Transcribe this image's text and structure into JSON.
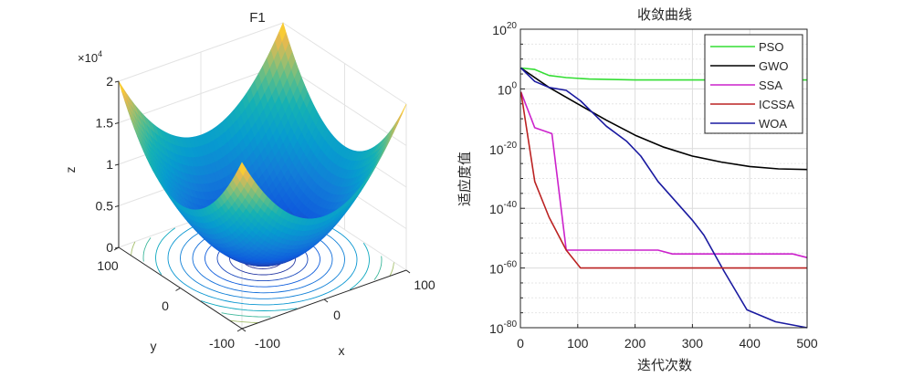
{
  "chart_data": [
    {
      "type": "surface",
      "title": "F1",
      "xlabel": "x",
      "ylabel": "y",
      "zlabel": "z",
      "z_exponent_label": "×10",
      "z_exponent_power": "4",
      "function": "x^2 + y^2",
      "x_range": [
        -100,
        100
      ],
      "y_range": [
        -100,
        100
      ],
      "zlim": [
        0,
        20000
      ],
      "x_ticks": [
        "-100",
        "0",
        "100"
      ],
      "y_ticks": [
        "-100",
        "0",
        "100"
      ],
      "z_ticks": [
        "0",
        "0.5",
        "1",
        "1.5",
        "2"
      ],
      "colormap": "parula",
      "contour_on_floor": true
    },
    {
      "type": "line",
      "title": "收敛曲线",
      "xlabel": "迭代次数",
      "ylabel": "适应度值",
      "yscale": "log",
      "xlim": [
        0,
        500
      ],
      "ylim_exponent": [
        -80,
        20
      ],
      "x_ticks": [
        "0",
        "100",
        "200",
        "300",
        "400",
        "500"
      ],
      "y_ticks": [
        {
          "base": "10",
          "exp": "20"
        },
        {
          "base": "10",
          "exp": "0"
        },
        {
          "base": "10",
          "exp": "-20"
        },
        {
          "base": "10",
          "exp": "-40"
        },
        {
          "base": "10",
          "exp": "-60"
        },
        {
          "base": "10",
          "exp": "-80"
        }
      ],
      "grid": true,
      "legend_position": "top-right",
      "series": [
        {
          "name": "PSO",
          "color": "#33dd33",
          "x": [
            1,
            25,
            50,
            80,
            120,
            200,
            300,
            400,
            500
          ],
          "log10_y": [
            7,
            6.5,
            4.5,
            3.8,
            3.3,
            3,
            3,
            3,
            3
          ]
        },
        {
          "name": "GWO",
          "color": "#000000",
          "x": [
            1,
            50,
            100,
            150,
            200,
            250,
            300,
            350,
            400,
            450,
            500
          ],
          "log10_y": [
            7,
            0.5,
            -5,
            -10.5,
            -15.5,
            -19.5,
            -22.5,
            -24.5,
            -26,
            -26.8,
            -27
          ]
        },
        {
          "name": "SSA",
          "color": "#cc22cc",
          "x": [
            1,
            25,
            55,
            80,
            100,
            240,
            265,
            475,
            500
          ],
          "log10_y": [
            -1,
            -13,
            -15,
            -54,
            -54,
            -54,
            -55.3,
            -55.3,
            -56.5
          ]
        },
        {
          "name": "ICSSA",
          "color": "#bb2222",
          "x": [
            1,
            25,
            50,
            80,
            105,
            200,
            300,
            400,
            500
          ],
          "log10_y": [
            -1,
            -31,
            -43,
            -54,
            -60,
            -60,
            -60,
            -60,
            -60
          ]
        },
        {
          "name": "WOA",
          "color": "#1a1aa0",
          "x": [
            1,
            25,
            50,
            80,
            105,
            150,
            185,
            210,
            240,
            300,
            320,
            355,
            395,
            445,
            500
          ],
          "log10_y": [
            7,
            2.5,
            0.5,
            -0.5,
            -4,
            -12.5,
            -17.5,
            -22.5,
            -31,
            -44,
            -49,
            -61,
            -74,
            -78,
            -80
          ]
        }
      ]
    }
  ]
}
